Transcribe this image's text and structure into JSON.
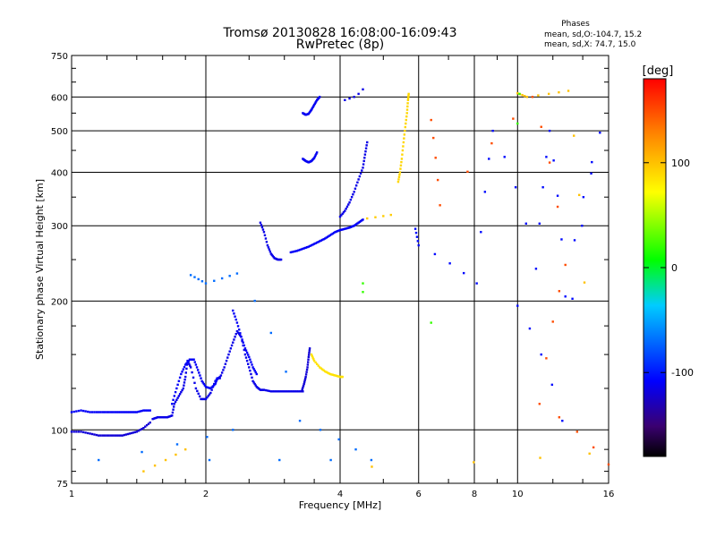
{
  "chart_data": {
    "type": "scatter",
    "title": "Tromsø 20130828 16:08:00-16:09:43",
    "subtitle": "RwPretec (8p)",
    "xlabel": "Frequency [MHz]",
    "ylabel": "Stationary phase Virtual Height [km]",
    "x_scale": "log",
    "y_scale": "log",
    "xlim": [
      1,
      16
    ],
    "ylim": [
      75,
      750
    ],
    "x_ticks": [
      1,
      2,
      4,
      6,
      8,
      10,
      16
    ],
    "y_ticks": [
      75,
      100,
      200,
      300,
      400,
      500,
      600,
      750
    ],
    "grid": true,
    "stats": {
      "heading": "Phases",
      "line_o": "mean, sd,O:-104.7, 15.2",
      "line_x": "mean, sd,X:  74.7, 15.0"
    },
    "colorbar": {
      "label": "[deg]",
      "range": [
        -180,
        180
      ],
      "ticks": [
        100,
        0,
        -100
      ]
    },
    "series": [
      {
        "phase_deg": -110,
        "points": [
          [
            1.0,
            110
          ],
          [
            1.05,
            111
          ],
          [
            1.1,
            110
          ],
          [
            1.15,
            110
          ],
          [
            1.2,
            110
          ],
          [
            1.25,
            110
          ],
          [
            1.3,
            110
          ],
          [
            1.35,
            110
          ],
          [
            1.4,
            110
          ],
          [
            1.45,
            111
          ],
          [
            1.5,
            111
          ]
        ]
      },
      {
        "phase_deg": -120,
        "points": [
          [
            1.0,
            99
          ],
          [
            1.05,
            99
          ],
          [
            1.1,
            98
          ],
          [
            1.15,
            97
          ],
          [
            1.2,
            97
          ],
          [
            1.25,
            97
          ],
          [
            1.3,
            97
          ],
          [
            1.35,
            98
          ],
          [
            1.4,
            99
          ],
          [
            1.45,
            101
          ],
          [
            1.5,
            104
          ]
        ]
      },
      {
        "phase_deg": -115,
        "points": [
          [
            1.52,
            106
          ],
          [
            1.56,
            107
          ],
          [
            1.6,
            107
          ],
          [
            1.64,
            107
          ],
          [
            1.68,
            108
          ],
          [
            1.7,
            115
          ],
          [
            1.74,
            120
          ],
          [
            1.78,
            125
          ],
          [
            1.8,
            133
          ],
          [
            1.82,
            145
          ],
          [
            1.85,
            140
          ],
          [
            1.9,
            125
          ],
          [
            1.95,
            118
          ],
          [
            2.0,
            118
          ],
          [
            2.05,
            122
          ],
          [
            2.1,
            130
          ],
          [
            2.15,
            133
          ]
        ]
      },
      {
        "phase_deg": -110,
        "points": [
          [
            1.68,
            115
          ],
          [
            1.72,
            125
          ],
          [
            1.76,
            135
          ],
          [
            1.8,
            142
          ],
          [
            1.84,
            146
          ],
          [
            1.88,
            146
          ],
          [
            1.92,
            138
          ],
          [
            1.96,
            130
          ],
          [
            2.0,
            126
          ],
          [
            2.05,
            125
          ],
          [
            2.1,
            128
          ],
          [
            2.12,
            132
          ]
        ]
      },
      {
        "phase_deg": -115,
        "points": [
          [
            2.15,
            132
          ],
          [
            2.2,
            140
          ],
          [
            2.25,
            150
          ],
          [
            2.3,
            160
          ],
          [
            2.35,
            170
          ],
          [
            2.4,
            165
          ],
          [
            2.45,
            150
          ],
          [
            2.5,
            140
          ],
          [
            2.55,
            130
          ],
          [
            2.6,
            126
          ],
          [
            2.65,
            124
          ],
          [
            2.7,
            124
          ],
          [
            2.8,
            123
          ],
          [
            2.9,
            123
          ],
          [
            3.0,
            123
          ],
          [
            3.1,
            123
          ],
          [
            3.2,
            123
          ],
          [
            3.3,
            123
          ]
        ]
      },
      {
        "phase_deg": -110,
        "points": [
          [
            2.3,
            190
          ],
          [
            2.35,
            178
          ],
          [
            2.4,
            165
          ],
          [
            2.45,
            155
          ],
          [
            2.5,
            148
          ],
          [
            2.55,
            140
          ],
          [
            2.6,
            135
          ]
        ]
      },
      {
        "phase_deg": -120,
        "points": [
          [
            3.28,
            123
          ],
          [
            3.32,
            128
          ],
          [
            3.35,
            133
          ],
          [
            3.38,
            140
          ],
          [
            3.4,
            148
          ],
          [
            3.42,
            155
          ]
        ]
      },
      {
        "phase_deg": 85,
        "points": [
          [
            3.45,
            150
          ],
          [
            3.5,
            145
          ],
          [
            3.6,
            140
          ],
          [
            3.7,
            137
          ],
          [
            3.8,
            135
          ],
          [
            3.9,
            134
          ],
          [
            4.0,
            133
          ],
          [
            4.05,
            133
          ]
        ]
      },
      {
        "phase_deg": -115,
        "points": [
          [
            2.65,
            305
          ],
          [
            2.7,
            290
          ],
          [
            2.75,
            270
          ],
          [
            2.8,
            258
          ],
          [
            2.85,
            252
          ],
          [
            2.9,
            250
          ],
          [
            2.95,
            250
          ]
        ]
      },
      {
        "phase_deg": -110,
        "points": [
          [
            3.1,
            260
          ],
          [
            3.2,
            262
          ],
          [
            3.3,
            265
          ],
          [
            3.4,
            268
          ],
          [
            3.5,
            272
          ],
          [
            3.6,
            276
          ],
          [
            3.7,
            280
          ],
          [
            3.8,
            285
          ],
          [
            3.9,
            290
          ],
          [
            4.0,
            293
          ],
          [
            4.1,
            295
          ],
          [
            4.2,
            297
          ],
          [
            4.3,
            300
          ],
          [
            4.4,
            305
          ],
          [
            4.5,
            310
          ]
        ]
      },
      {
        "phase_deg": -115,
        "points": [
          [
            4.0,
            315
          ],
          [
            4.1,
            325
          ],
          [
            4.2,
            340
          ],
          [
            4.3,
            360
          ],
          [
            4.4,
            385
          ],
          [
            4.5,
            410
          ],
          [
            4.55,
            440
          ],
          [
            4.6,
            470
          ]
        ]
      },
      {
        "phase_deg": -112,
        "points": [
          [
            3.3,
            430
          ],
          [
            3.35,
            425
          ],
          [
            3.4,
            422
          ],
          [
            3.45,
            425
          ],
          [
            3.5,
            432
          ],
          [
            3.55,
            445
          ]
        ]
      },
      {
        "phase_deg": -112,
        "points": [
          [
            3.3,
            550
          ],
          [
            3.35,
            545
          ],
          [
            3.4,
            548
          ],
          [
            3.45,
            560
          ],
          [
            3.5,
            575
          ],
          [
            3.55,
            590
          ],
          [
            3.6,
            600
          ]
        ]
      },
      {
        "phase_deg": -115,
        "points": [
          [
            4.1,
            590
          ],
          [
            4.2,
            595
          ],
          [
            4.3,
            600
          ],
          [
            4.4,
            610
          ],
          [
            4.5,
            625
          ]
        ]
      },
      {
        "phase_deg": 95,
        "points": [
          [
            4.6,
            312
          ],
          [
            4.8,
            314
          ],
          [
            5.0,
            316
          ],
          [
            5.2,
            318
          ]
        ]
      },
      {
        "phase_deg": 90,
        "points": [
          [
            5.4,
            380
          ],
          [
            5.45,
            400
          ],
          [
            5.5,
            430
          ],
          [
            5.55,
            470
          ],
          [
            5.6,
            510
          ],
          [
            5.65,
            550
          ],
          [
            5.68,
            590
          ],
          [
            5.7,
            610
          ]
        ]
      },
      {
        "phase_deg": -105,
        "points": [
          [
            5.9,
            295
          ],
          [
            6.0,
            270
          ],
          [
            8.1,
            220
          ],
          [
            8.8,
            500
          ],
          [
            11.0,
            238
          ],
          [
            11.8,
            500
          ],
          [
            12.8,
            205
          ],
          [
            15.3,
            495
          ],
          [
            12.6,
            105
          ],
          [
            10.0,
            195
          ]
        ]
      },
      {
        "phase_deg": 150,
        "points": [
          [
            6.4,
            530
          ],
          [
            6.7,
            335
          ],
          [
            10.8,
            600
          ],
          [
            12.8,
            243
          ],
          [
            11.2,
            115
          ],
          [
            16.0,
            83
          ]
        ]
      },
      {
        "phase_deg": 100,
        "points": [
          [
            10.0,
            612
          ],
          [
            10.5,
            600
          ],
          [
            13.0,
            620
          ],
          [
            14.5,
            88
          ],
          [
            1.45,
            80
          ],
          [
            1.8,
            90
          ]
        ]
      },
      {
        "phase_deg": 20,
        "points": [
          [
            10.0,
            520
          ],
          [
            10.1,
            610
          ],
          [
            4.5,
            220
          ],
          [
            4.5,
            210
          ],
          [
            6.4,
            178
          ]
        ]
      },
      {
        "phase_deg": -70,
        "points": [
          [
            1.85,
            230
          ],
          [
            2.0,
            220
          ],
          [
            2.35,
            232
          ],
          [
            3.25,
            105
          ],
          [
            4.7,
            85
          ],
          [
            1.15,
            85
          ],
          [
            2.3,
            100
          ]
        ]
      }
    ]
  }
}
